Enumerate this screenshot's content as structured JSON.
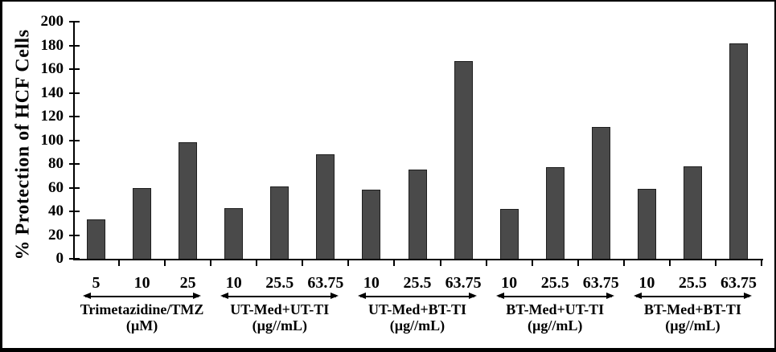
{
  "chart_data": {
    "type": "bar",
    "title": "",
    "ylabel": "% Protection of HCF Cells",
    "xlabel": "",
    "ylim": [
      0,
      200
    ],
    "ytick_step": 20,
    "yticks": [
      0,
      20,
      40,
      60,
      80,
      100,
      120,
      140,
      160,
      180,
      200
    ],
    "grid": false,
    "legend": "none",
    "bar_color": "#4a4a4a",
    "bar_border_color": "#1f1f1f",
    "groups": [
      {
        "name": "Trimetazidine/TMZ",
        "unit": "(µM)",
        "doses": [
          "5",
          "10",
          "25"
        ],
        "values": [
          33,
          60,
          98
        ]
      },
      {
        "name": "UT-Med+UT-TI",
        "unit": "(µg//mL)",
        "doses": [
          "10",
          "25.5",
          "63.75"
        ],
        "values": [
          43,
          61,
          88
        ]
      },
      {
        "name": "UT-Med+BT-TI",
        "unit": "(µg//mL)",
        "doses": [
          "10",
          "25.5",
          "63.75"
        ],
        "values": [
          58,
          75,
          167
        ]
      },
      {
        "name": "BT-Med+UT-TI",
        "unit": "(µg//mL)",
        "doses": [
          "10",
          "25.5",
          "63.75"
        ],
        "values": [
          42,
          77,
          111
        ]
      },
      {
        "name": "BT-Med+BT-TI",
        "unit": "(µg//mL)",
        "doses": [
          "10",
          "25.5",
          "63.75"
        ],
        "values": [
          59,
          78,
          182
        ]
      }
    ]
  }
}
